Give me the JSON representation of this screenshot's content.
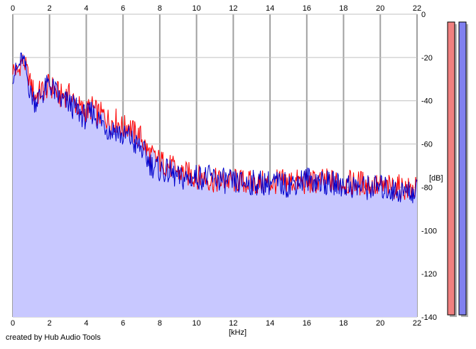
{
  "app": {
    "credit": "created by Hub Audio Tools"
  },
  "chart_data": {
    "type": "line",
    "xlabel": "[kHz]",
    "ylabel": "[dB]",
    "xlim": [
      0,
      22
    ],
    "ylim": [
      -140,
      0
    ],
    "x_ticks": [
      "0",
      "2",
      "4",
      "6",
      "8",
      "10",
      "12",
      "14",
      "16",
      "18",
      "20",
      "22"
    ],
    "y_ticks": [
      "0",
      "-20",
      "-40",
      "-60",
      "-80",
      "-100",
      "-120",
      "-140"
    ],
    "grid": true,
    "colors": {
      "left": "#ff0000",
      "right": "#0000cc",
      "fill": "#c8c8ff",
      "meter_left": "#f08080",
      "meter_right": "#8080f0"
    },
    "series": [
      {
        "channel": "left",
        "x": [
          0,
          0.3,
          0.5,
          0.7,
          0.9,
          1.2,
          1.5,
          2,
          2.3,
          2.6,
          3,
          3.3,
          3.7,
          4,
          4.3,
          4.6,
          5,
          5.3,
          5.6,
          6,
          6.3,
          6.6,
          7,
          7.3,
          7.6,
          8,
          8.5,
          9,
          9.5,
          10,
          11,
          12,
          13,
          14,
          15,
          16,
          17,
          18,
          19,
          19.5,
          20,
          20.5,
          21,
          21.5,
          22
        ],
        "y": [
          -25,
          -27,
          -21,
          -24,
          -30,
          -38,
          -36,
          -33,
          -35,
          -38,
          -37,
          -40,
          -44,
          -45,
          -43,
          -46,
          -47,
          -50,
          -49,
          -53,
          -51,
          -55,
          -57,
          -63,
          -66,
          -68,
          -70,
          -73,
          -74,
          -75,
          -77,
          -77,
          -78,
          -78,
          -77,
          -78,
          -77,
          -78,
          -78,
          -79,
          -80,
          -80,
          -80,
          -81,
          -81
        ]
      },
      {
        "channel": "right",
        "x": [
          0,
          0.3,
          0.5,
          0.7,
          0.9,
          1.2,
          1.5,
          2,
          2.3,
          2.6,
          3,
          3.3,
          3.7,
          4,
          4.3,
          4.6,
          5,
          5.3,
          5.6,
          6,
          6.3,
          6.6,
          7,
          7.3,
          7.6,
          8,
          8.5,
          9,
          9.5,
          10,
          11,
          12,
          13,
          14,
          15,
          16,
          17,
          18,
          19,
          19.5,
          20,
          20.5,
          21,
          21.5,
          22
        ],
        "y": [
          -28,
          -25,
          -20,
          -25,
          -35,
          -40,
          -38,
          -32,
          -36,
          -40,
          -41,
          -43,
          -46,
          -48,
          -45,
          -48,
          -51,
          -54,
          -53,
          -57,
          -56,
          -60,
          -62,
          -67,
          -70,
          -72,
          -73,
          -76,
          -76,
          -75,
          -76,
          -78,
          -78,
          -78,
          -79,
          -76,
          -78,
          -79,
          -80,
          -80,
          -80,
          -81,
          -82,
          -82,
          -82
        ]
      }
    ],
    "meters": [
      {
        "channel": "left",
        "level": 1.0
      },
      {
        "channel": "right",
        "level": 1.0
      }
    ]
  }
}
